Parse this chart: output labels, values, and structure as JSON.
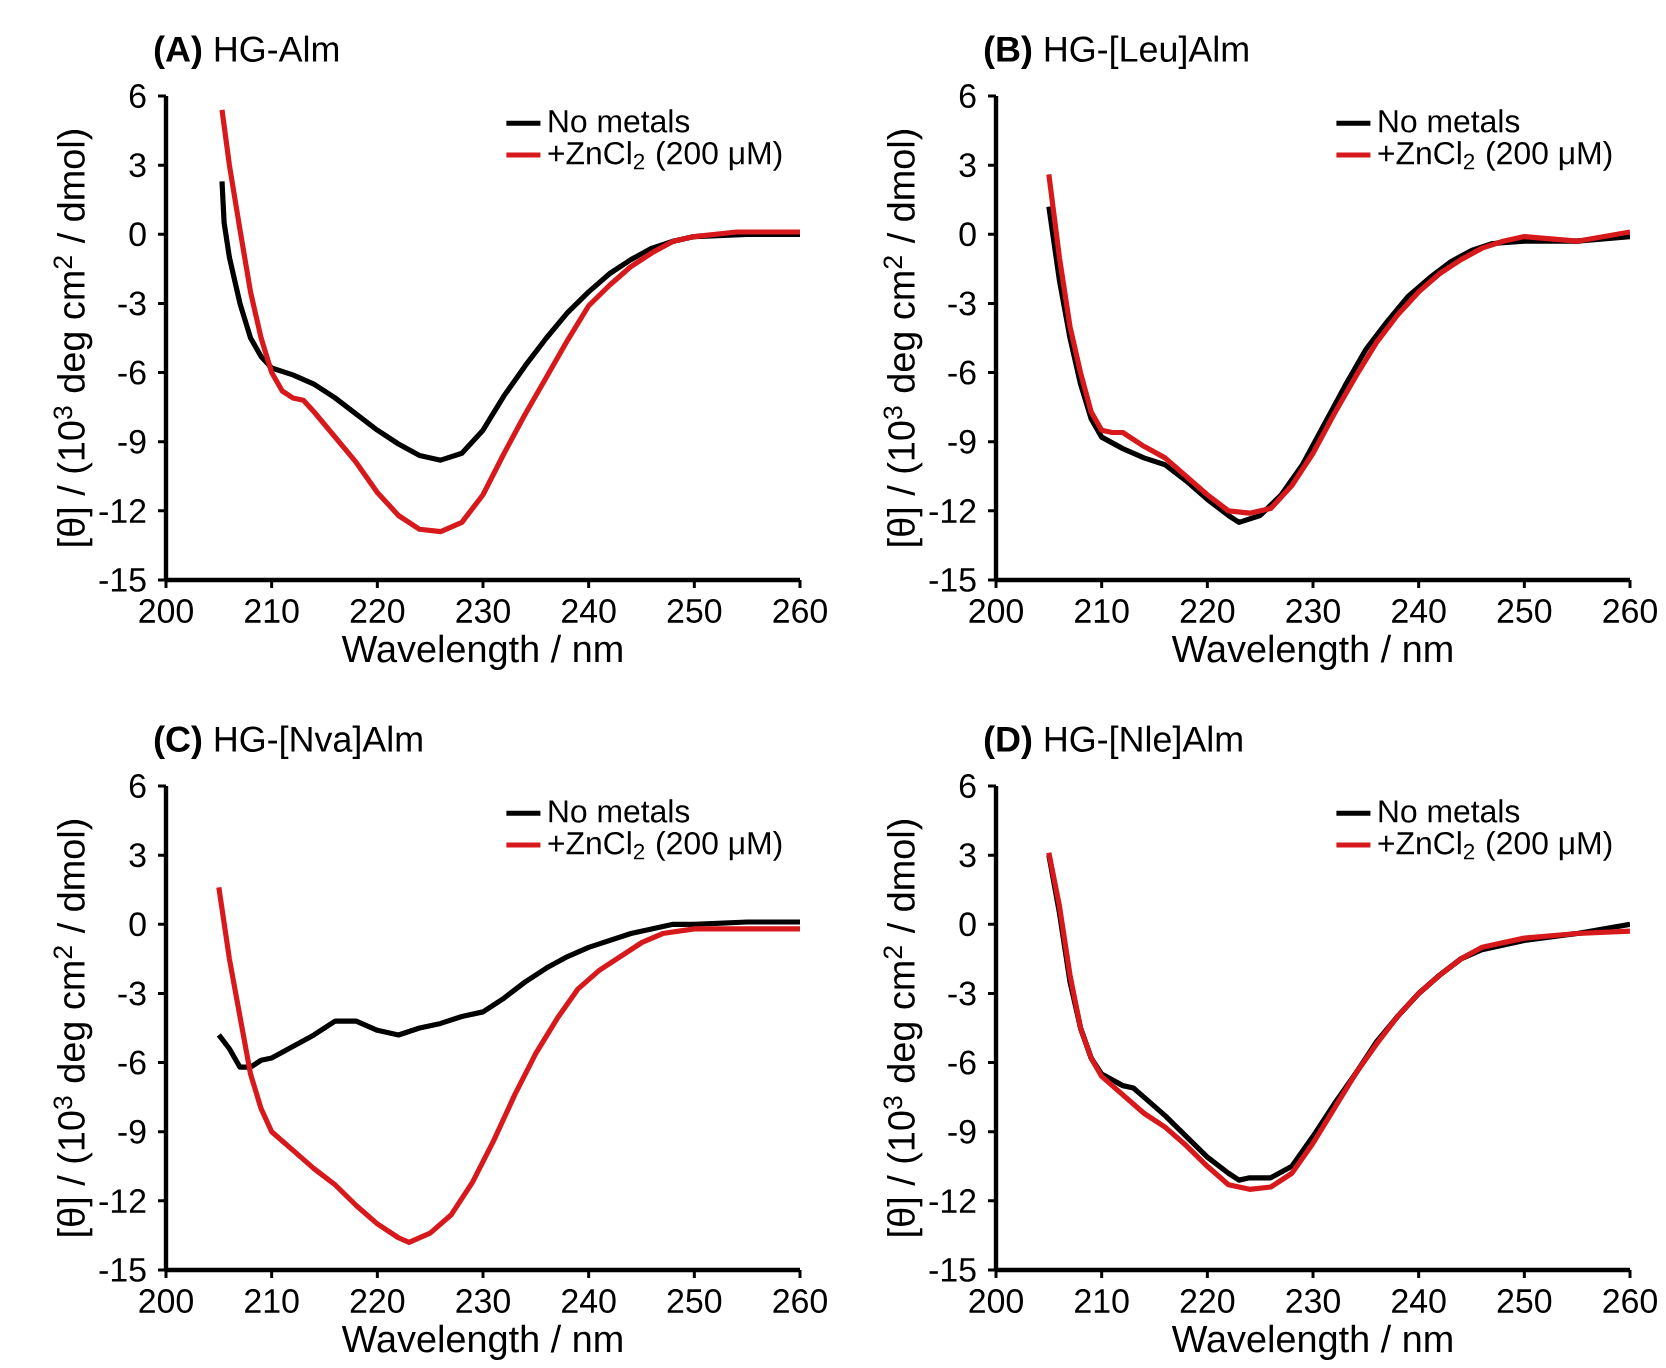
{
  "chart_data": [
    {
      "type": "line",
      "title": "**(A)** HG-Alm",
      "xlabel": "Wavelength / nm",
      "ylabel": "[θ] / (10$^{3}$ deg cm$^{2}$ / dmol)",
      "xlim": [
        200,
        260
      ],
      "ylim": [
        -15,
        6
      ],
      "xticks": [
        200,
        210,
        220,
        230,
        240,
        250,
        260
      ],
      "yticks": [
        -15,
        -12,
        -9,
        -6,
        -3,
        0,
        3,
        6
      ],
      "legend": "top right",
      "line_style": "solid",
      "series": [
        {
          "name": "No metals",
          "color": "#000000",
          "x": [
            205.3,
            205.5,
            206,
            207,
            208,
            209,
            210,
            212,
            214,
            216,
            218,
            220,
            222,
            224,
            226,
            228,
            230,
            232,
            234,
            236,
            238,
            240,
            242,
            244,
            246,
            248,
            250,
            255,
            260
          ],
          "values": [
            2.3,
            0.5,
            -1,
            -3,
            -4.5,
            -5.3,
            -5.8,
            -6.1,
            -6.5,
            -7.1,
            -7.8,
            -8.5,
            -9.1,
            -9.6,
            -9.8,
            -9.5,
            -8.5,
            -7.0,
            -5.7,
            -4.5,
            -3.4,
            -2.5,
            -1.7,
            -1.1,
            -0.6,
            -0.3,
            -0.1,
            0,
            0
          ]
        },
        {
          "name": "+ZnCl$_{2}$ (200 μM)",
          "color": "#d7191c",
          "x": [
            205.3,
            206,
            207,
            208,
            209,
            210,
            211,
            212,
            213,
            214,
            216,
            218,
            220,
            222,
            224,
            226,
            228,
            230,
            232,
            234,
            236,
            238,
            240,
            242,
            244,
            246,
            248,
            250,
            254,
            260
          ],
          "values": [
            5.4,
            3,
            0.2,
            -2.5,
            -4.5,
            -6,
            -6.8,
            -7.1,
            -7.2,
            -7.7,
            -8.8,
            -9.9,
            -11.2,
            -12.2,
            -12.8,
            -12.9,
            -12.5,
            -11.3,
            -9.5,
            -7.8,
            -6.2,
            -4.6,
            -3.1,
            -2.2,
            -1.4,
            -0.8,
            -0.3,
            -0.1,
            0.1,
            0.1
          ]
        }
      ]
    },
    {
      "type": "line",
      "title": "**(B)** HG-[Leu]Alm",
      "xlabel": "Wavelength / nm",
      "ylabel": "[θ] / (10$^{3}$ deg cm$^{2}$ / dmol)",
      "xlim": [
        200,
        260
      ],
      "ylim": [
        -15,
        6
      ],
      "xticks": [
        200,
        210,
        220,
        230,
        240,
        250,
        260
      ],
      "yticks": [
        -15,
        -12,
        -9,
        -6,
        -3,
        0,
        3,
        6
      ],
      "legend": "top right",
      "line_style": "solid",
      "series": [
        {
          "name": "No metals",
          "color": "#000000",
          "x": [
            205,
            206,
            207,
            208,
            209,
            210,
            212,
            214,
            216,
            218,
            220,
            222,
            223,
            225,
            227,
            229,
            231,
            233,
            235,
            237,
            239,
            241,
            243,
            245,
            247,
            250,
            255,
            260
          ],
          "values": [
            1.2,
            -2,
            -4.5,
            -6.5,
            -8,
            -8.8,
            -9.3,
            -9.7,
            -10,
            -10.7,
            -11.5,
            -12.2,
            -12.5,
            -12.2,
            -11.3,
            -10,
            -8.3,
            -6.6,
            -5,
            -3.8,
            -2.7,
            -1.9,
            -1.2,
            -0.7,
            -0.4,
            -0.3,
            -0.3,
            -0.1
          ]
        },
        {
          "name": "+ZnCl$_{2}$ (200 μM)",
          "color": "#d7191c",
          "x": [
            205,
            206,
            207,
            208,
            209,
            210,
            211,
            212,
            214,
            216,
            218,
            220,
            222,
            224,
            226,
            228,
            230,
            232,
            234,
            236,
            238,
            240,
            242,
            244,
            246,
            248,
            250,
            255,
            260
          ],
          "values": [
            2.6,
            -1,
            -4,
            -6,
            -7.7,
            -8.5,
            -8.6,
            -8.6,
            -9.2,
            -9.7,
            -10.5,
            -11.3,
            -12,
            -12.1,
            -11.9,
            -10.9,
            -9.5,
            -7.8,
            -6.2,
            -4.7,
            -3.5,
            -2.5,
            -1.7,
            -1.1,
            -0.6,
            -0.3,
            -0.1,
            -0.3,
            0.1
          ]
        }
      ]
    },
    {
      "type": "line",
      "title": "**(C)** HG-[Nva]Alm",
      "xlabel": "Wavelength / nm",
      "ylabel": "[θ] / (10$^{3}$ deg cm$^{2}$ / dmol)",
      "xlim": [
        200,
        260
      ],
      "ylim": [
        -15,
        6
      ],
      "xticks": [
        200,
        210,
        220,
        230,
        240,
        250,
        260
      ],
      "yticks": [
        -15,
        -12,
        -9,
        -6,
        -3,
        0,
        3,
        6
      ],
      "legend": "top right",
      "line_style": "solid",
      "series": [
        {
          "name": "No metals",
          "color": "#000000",
          "x": [
            205,
            206,
            207,
            208,
            209,
            210,
            212,
            214,
            216,
            218,
            220,
            222,
            224,
            226,
            228,
            230,
            232,
            234,
            236,
            238,
            240,
            242,
            244,
            246,
            248,
            250,
            255,
            260
          ],
          "values": [
            -4.8,
            -5.4,
            -6.2,
            -6.2,
            -5.9,
            -5.8,
            -5.3,
            -4.8,
            -4.2,
            -4.2,
            -4.6,
            -4.8,
            -4.5,
            -4.3,
            -4.0,
            -3.8,
            -3.2,
            -2.5,
            -1.9,
            -1.4,
            -1.0,
            -0.7,
            -0.4,
            -0.2,
            0,
            0,
            0.1,
            0.1
          ]
        },
        {
          "name": "+ZnCl$_{2}$ (200 μM)",
          "color": "#d7191c",
          "x": [
            205,
            206,
            207,
            208,
            209,
            210,
            212,
            214,
            216,
            218,
            220,
            222,
            223,
            225,
            227,
            229,
            231,
            233,
            235,
            237,
            239,
            241,
            243,
            245,
            247,
            250,
            255,
            260
          ],
          "values": [
            1.6,
            -1.5,
            -4,
            -6.5,
            -8,
            -9,
            -9.8,
            -10.6,
            -11.3,
            -12.2,
            -13,
            -13.6,
            -13.8,
            -13.4,
            -12.6,
            -11.2,
            -9.4,
            -7.4,
            -5.6,
            -4.1,
            -2.8,
            -2.0,
            -1.4,
            -0.8,
            -0.4,
            -0.2,
            -0.2,
            -0.2
          ]
        }
      ]
    },
    {
      "type": "line",
      "title": "**(D)** HG-[Nle]Alm",
      "xlabel": "Wavelength / nm",
      "ylabel": "[θ] / (10$^{3}$ deg cm$^{2}$ / dmol)",
      "xlim": [
        200,
        260
      ],
      "ylim": [
        -15,
        6
      ],
      "xticks": [
        200,
        210,
        220,
        230,
        240,
        250,
        260
      ],
      "yticks": [
        -15,
        -12,
        -9,
        -6,
        -3,
        0,
        3,
        6
      ],
      "legend": "top right",
      "line_style": "solid",
      "series": [
        {
          "name": "No metals",
          "color": "#000000",
          "x": [
            205,
            206,
            207,
            208,
            209,
            210,
            212,
            213,
            214,
            216,
            218,
            220,
            222,
            223,
            224,
            226,
            228,
            230,
            232,
            234,
            236,
            238,
            240,
            242,
            244,
            246,
            248,
            250,
            255,
            260
          ],
          "values": [
            3,
            0.5,
            -2.5,
            -4.5,
            -5.8,
            -6.5,
            -7,
            -7.1,
            -7.5,
            -8.3,
            -9.2,
            -10.1,
            -10.8,
            -11.1,
            -11,
            -11,
            -10.5,
            -9.2,
            -7.8,
            -6.5,
            -5.1,
            -4.0,
            -3.0,
            -2.2,
            -1.5,
            -1.1,
            -0.9,
            -0.7,
            -0.4,
            0
          ]
        },
        {
          "name": "+ZnCl$_{2}$ (200 μM)",
          "color": "#d7191c",
          "x": [
            205,
            206,
            207,
            208,
            209,
            210,
            212,
            214,
            216,
            218,
            220,
            222,
            224,
            226,
            228,
            230,
            232,
            234,
            236,
            238,
            240,
            242,
            244,
            246,
            248,
            250,
            255,
            260
          ],
          "values": [
            3.1,
            0.8,
            -2.2,
            -4.5,
            -5.8,
            -6.6,
            -7.4,
            -8.2,
            -8.8,
            -9.6,
            -10.5,
            -11.3,
            -11.5,
            -11.4,
            -10.8,
            -9.5,
            -8.0,
            -6.5,
            -5.2,
            -4.0,
            -3.0,
            -2.2,
            -1.5,
            -1.0,
            -0.8,
            -0.6,
            -0.4,
            -0.3
          ]
        }
      ]
    }
  ]
}
